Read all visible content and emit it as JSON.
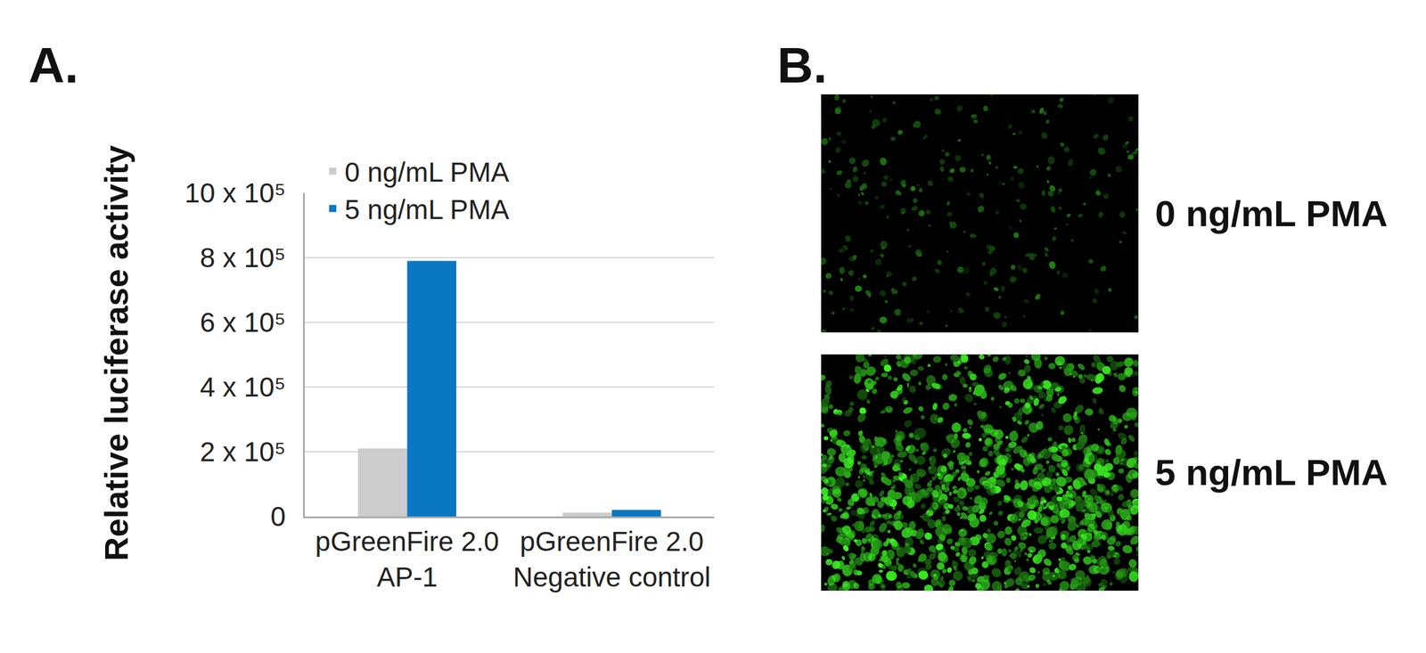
{
  "panel_labels": [
    "A.",
    "B."
  ],
  "chart_data": {
    "type": "bar",
    "y_label": "Relative luciferase activity",
    "categories": [
      "pGreenFire 2.0\nAP-1",
      "pGreenFire 2.0\nNegative control"
    ],
    "series": [
      {
        "name": "0 ng/mL PMA",
        "color": "#cccccc",
        "values": [
          210000,
          12000
        ]
      },
      {
        "name": "5 ng/mL PMA",
        "color": "#0a77c2",
        "values": [
          790000,
          20000
        ]
      }
    ],
    "ylim": [
      0,
      1000000
    ],
    "yticks": [
      0,
      {
        "value": 200000,
        "label": "2 x 10⁵"
      },
      {
        "value": 400000,
        "label": "4 x 10⁵"
      },
      {
        "value": 600000,
        "label": "6 x 10⁵"
      },
      {
        "value": 800000,
        "label": "8 x 10⁵"
      },
      {
        "value": 1000000,
        "label": "10 x 10⁵"
      }
    ],
    "grid": true,
    "legend": "top left"
  },
  "images": [
    {
      "label": "0 ng/mL PMA"
    },
    {
      "label": "5 ng/mL PMA"
    }
  ]
}
